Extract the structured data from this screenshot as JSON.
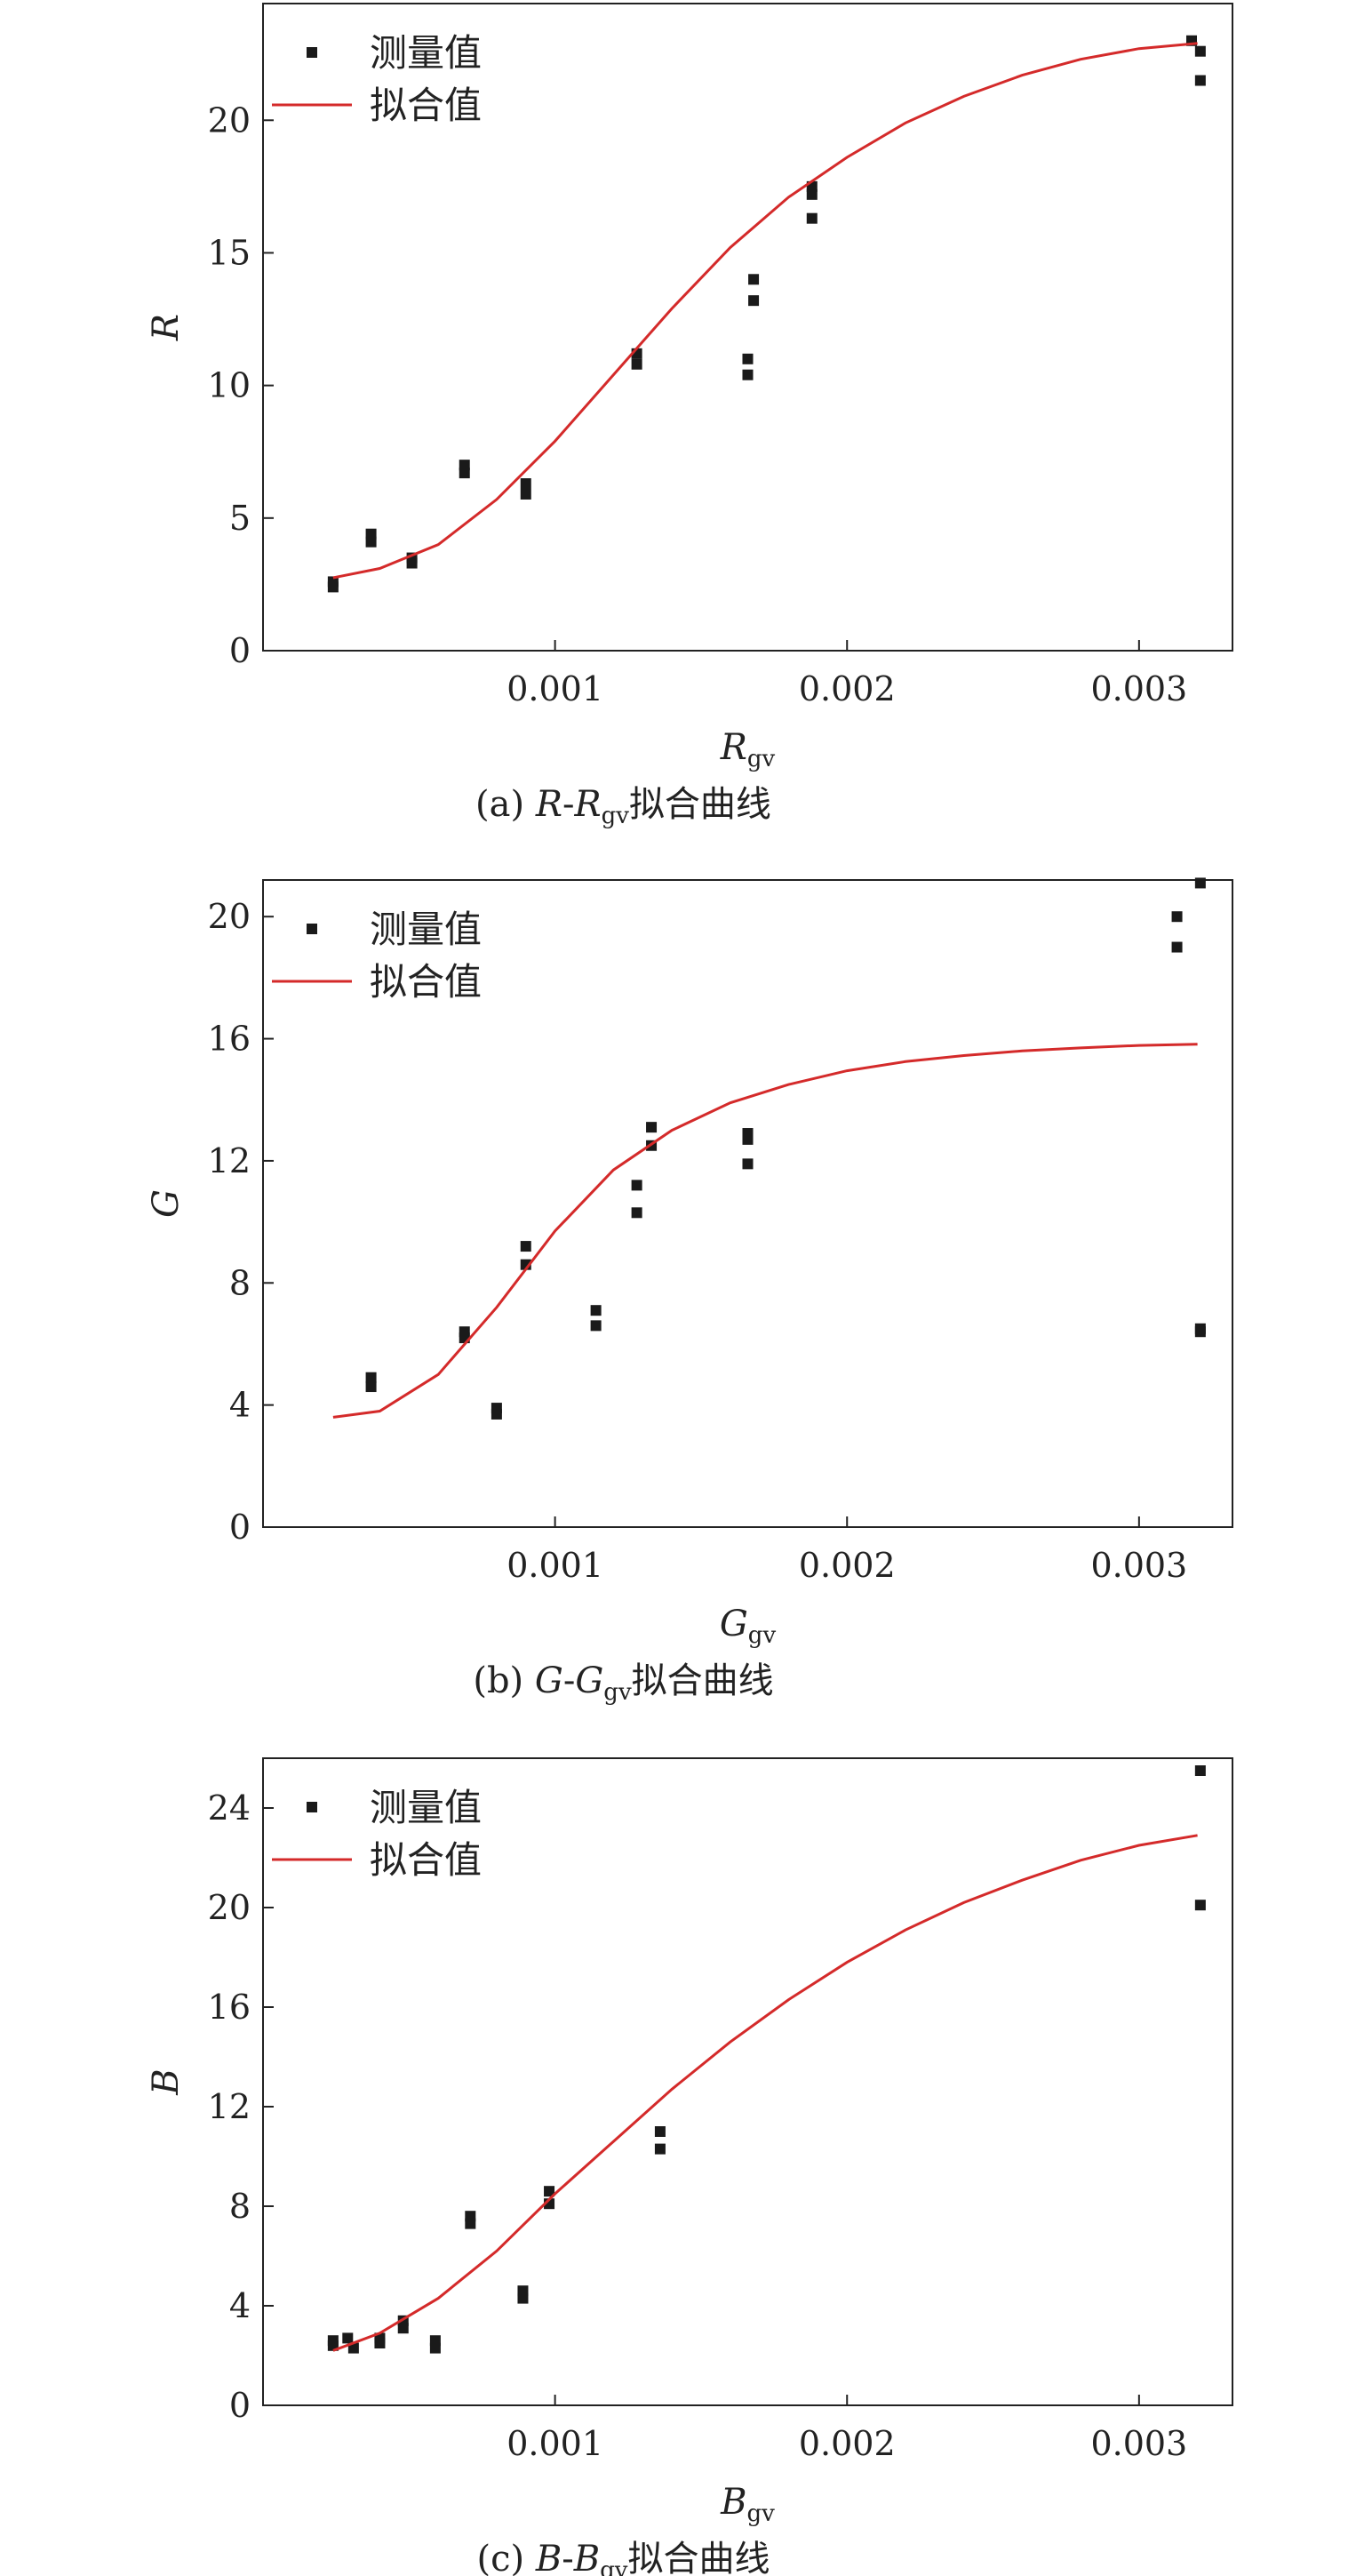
{
  "chart_data": [
    {
      "type": "scatter",
      "panel_id": "a",
      "caption": {
        "prefix": "(a) ",
        "y": "R",
        "dash": "-",
        "x": "R",
        "sub": "gv",
        "suffix": "拟合曲线"
      },
      "ylabel": "R",
      "xlabel": {
        "main": "R",
        "sub": "gv"
      },
      "xlim": [
        0,
        0.00332
      ],
      "ylim": [
        0,
        24.4
      ],
      "xticks": [
        0.001,
        0.002,
        0.003
      ],
      "xtick_labels": [
        "0.001",
        "0.002",
        "0.003"
      ],
      "yticks": [
        0,
        5,
        10,
        15,
        20
      ],
      "ytick_labels": [
        "0",
        "5",
        "10",
        "15",
        "20"
      ],
      "legend_position": "top-left",
      "series": [
        {
          "name": "测量值",
          "kind": "points",
          "color": "#1a1a1a",
          "points": [
            [
              0.00024,
              2.4
            ],
            [
              0.00024,
              2.6
            ],
            [
              0.00037,
              4.1
            ],
            [
              0.00037,
              4.4
            ],
            [
              0.00051,
              3.3
            ],
            [
              0.00051,
              3.5
            ],
            [
              0.00069,
              6.7
            ],
            [
              0.00069,
              7.0
            ],
            [
              0.0009,
              5.9
            ],
            [
              0.0009,
              6.3
            ],
            [
              0.00128,
              10.8
            ],
            [
              0.00128,
              11.2
            ],
            [
              0.00166,
              10.4
            ],
            [
              0.00166,
              11.0
            ],
            [
              0.00168,
              13.2
            ],
            [
              0.00168,
              14.0
            ],
            [
              0.00188,
              16.3
            ],
            [
              0.00188,
              17.2
            ],
            [
              0.00188,
              17.5
            ],
            [
              0.00318,
              23.0
            ],
            [
              0.00321,
              22.6
            ],
            [
              0.00321,
              21.5
            ]
          ]
        },
        {
          "name": "拟合值",
          "kind": "line",
          "color": "#d42a2a",
          "points": [
            [
              0.00024,
              2.75
            ],
            [
              0.0004,
              3.1
            ],
            [
              0.0006,
              4.0
            ],
            [
              0.0008,
              5.7
            ],
            [
              0.001,
              7.9
            ],
            [
              0.0012,
              10.4
            ],
            [
              0.0014,
              12.9
            ],
            [
              0.0016,
              15.2
            ],
            [
              0.0018,
              17.1
            ],
            [
              0.002,
              18.6
            ],
            [
              0.0022,
              19.9
            ],
            [
              0.0024,
              20.9
            ],
            [
              0.0026,
              21.7
            ],
            [
              0.0028,
              22.3
            ],
            [
              0.003,
              22.7
            ],
            [
              0.0032,
              22.9
            ]
          ]
        }
      ]
    },
    {
      "type": "scatter",
      "panel_id": "b",
      "caption": {
        "prefix": "(b) ",
        "y": "G",
        "dash": "-",
        "x": "G",
        "sub": "gv",
        "suffix": "拟合曲线"
      },
      "ylabel": "G",
      "xlabel": {
        "main": "G",
        "sub": "gv"
      },
      "xlim": [
        0,
        0.00332
      ],
      "ylim": [
        0,
        21.2
      ],
      "xticks": [
        0.001,
        0.002,
        0.003
      ],
      "xtick_labels": [
        "0.001",
        "0.002",
        "0.003"
      ],
      "yticks": [
        0,
        4,
        8,
        12,
        16,
        20
      ],
      "ytick_labels": [
        "0",
        "4",
        "8",
        "12",
        "16",
        "20"
      ],
      "legend_position": "top-left",
      "series": [
        {
          "name": "测量值",
          "kind": "points",
          "color": "#1a1a1a",
          "points": [
            [
              0.00037,
              4.6
            ],
            [
              0.00037,
              4.9
            ],
            [
              0.00069,
              6.2
            ],
            [
              0.00069,
              6.4
            ],
            [
              0.0008,
              3.7
            ],
            [
              0.0008,
              3.9
            ],
            [
              0.0009,
              8.6
            ],
            [
              0.0009,
              9.2
            ],
            [
              0.00114,
              6.6
            ],
            [
              0.00114,
              7.1
            ],
            [
              0.00128,
              10.3
            ],
            [
              0.00128,
              11.2
            ],
            [
              0.00133,
              12.5
            ],
            [
              0.00133,
              13.1
            ],
            [
              0.00166,
              11.9
            ],
            [
              0.00166,
              12.7
            ],
            [
              0.00166,
              12.9
            ],
            [
              0.00313,
              19.0
            ],
            [
              0.00313,
              20.0
            ],
            [
              0.00321,
              21.1
            ],
            [
              0.00321,
              6.4
            ],
            [
              0.00321,
              6.5
            ]
          ]
        },
        {
          "name": "拟合值",
          "kind": "line",
          "color": "#d42a2a",
          "points": [
            [
              0.00024,
              3.6
            ],
            [
              0.0004,
              3.8
            ],
            [
              0.0006,
              5.0
            ],
            [
              0.0008,
              7.2
            ],
            [
              0.001,
              9.7
            ],
            [
              0.0012,
              11.7
            ],
            [
              0.0014,
              13.0
            ],
            [
              0.0016,
              13.9
            ],
            [
              0.0018,
              14.5
            ],
            [
              0.002,
              14.95
            ],
            [
              0.0022,
              15.25
            ],
            [
              0.0024,
              15.45
            ],
            [
              0.0026,
              15.6
            ],
            [
              0.0028,
              15.7
            ],
            [
              0.003,
              15.78
            ],
            [
              0.0032,
              15.82
            ]
          ]
        }
      ]
    },
    {
      "type": "scatter",
      "panel_id": "c",
      "caption": {
        "prefix": "(c) ",
        "y": "B",
        "dash": "-",
        "x": "B",
        "sub": "gv",
        "suffix": "拟合曲线"
      },
      "ylabel": "B",
      "xlabel": {
        "main": "B",
        "sub": "gv"
      },
      "xlim": [
        0,
        0.00332
      ],
      "ylim": [
        0,
        26.0
      ],
      "xticks": [
        0.001,
        0.002,
        0.003
      ],
      "xtick_labels": [
        "0.001",
        "0.002",
        "0.003"
      ],
      "yticks": [
        0,
        4,
        8,
        12,
        16,
        20,
        24
      ],
      "ytick_labels": [
        "0",
        "4",
        "8",
        "12",
        "16",
        "20",
        "24"
      ],
      "legend_position": "top-left",
      "series": [
        {
          "name": "测量值",
          "kind": "points",
          "color": "#1a1a1a",
          "points": [
            [
              0.00024,
              2.4
            ],
            [
              0.00024,
              2.6
            ],
            [
              0.00029,
              2.7
            ],
            [
              0.00031,
              2.3
            ],
            [
              0.0004,
              2.5
            ],
            [
              0.0004,
              2.7
            ],
            [
              0.00048,
              3.1
            ],
            [
              0.00048,
              3.4
            ],
            [
              0.00059,
              2.3
            ],
            [
              0.00059,
              2.6
            ],
            [
              0.00071,
              7.3
            ],
            [
              0.00071,
              7.6
            ],
            [
              0.00089,
              4.3
            ],
            [
              0.00089,
              4.6
            ],
            [
              0.00098,
              8.1
            ],
            [
              0.00098,
              8.6
            ],
            [
              0.00136,
              10.3
            ],
            [
              0.00136,
              11.0
            ],
            [
              0.00321,
              25.5
            ],
            [
              0.00321,
              20.1
            ]
          ]
        },
        {
          "name": "拟合值",
          "kind": "line",
          "color": "#d42a2a",
          "points": [
            [
              0.00024,
              2.2
            ],
            [
              0.0004,
              2.9
            ],
            [
              0.0006,
              4.3
            ],
            [
              0.0008,
              6.2
            ],
            [
              0.001,
              8.5
            ],
            [
              0.0012,
              10.6
            ],
            [
              0.0014,
              12.7
            ],
            [
              0.0016,
              14.6
            ],
            [
              0.0018,
              16.3
            ],
            [
              0.002,
              17.8
            ],
            [
              0.0022,
              19.1
            ],
            [
              0.0024,
              20.2
            ],
            [
              0.0026,
              21.1
            ],
            [
              0.0028,
              21.9
            ],
            [
              0.003,
              22.5
            ],
            [
              0.0032,
              22.9
            ]
          ]
        }
      ]
    }
  ]
}
